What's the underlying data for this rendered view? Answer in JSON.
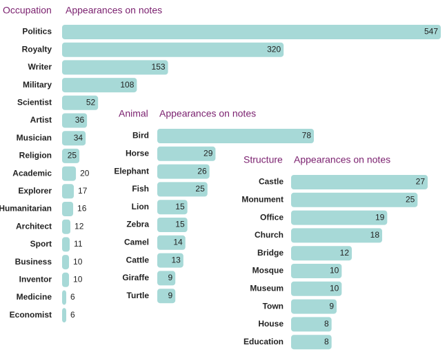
{
  "chart_data": [
    {
      "type": "bar",
      "orientation": "horizontal",
      "category_header": "Occupation",
      "value_header": "Appearances on notes",
      "categories": [
        "Politics",
        "Royalty",
        "Writer",
        "Military",
        "Scientist",
        "Artist",
        "Musician",
        "Religion",
        "Academic",
        "Explorer",
        "Humanitarian",
        "Architect",
        "Sport",
        "Business",
        "Inventor",
        "Medicine",
        "Economist"
      ],
      "values": [
        547,
        320,
        153,
        108,
        52,
        36,
        34,
        25,
        20,
        17,
        16,
        12,
        11,
        10,
        10,
        6,
        6
      ],
      "xlim": [
        0,
        547
      ],
      "grid": false,
      "data_labels": true
    },
    {
      "type": "bar",
      "orientation": "horizontal",
      "category_header": "Animal",
      "value_header": "Appearances on notes",
      "categories": [
        "Bird",
        "Horse",
        "Elephant",
        "Fish",
        "Lion",
        "Zebra",
        "Camel",
        "Cattle",
        "Giraffe",
        "Turtle"
      ],
      "values": [
        78,
        29,
        26,
        25,
        15,
        15,
        14,
        13,
        9,
        9
      ],
      "xlim": [
        0,
        78
      ],
      "grid": false,
      "data_labels": true
    },
    {
      "type": "bar",
      "orientation": "horizontal",
      "category_header": "Structure",
      "value_header": "Appearances on notes",
      "categories": [
        "Castle",
        "Monument",
        "Office",
        "Church",
        "Bridge",
        "Mosque",
        "Museum",
        "Town",
        "House",
        "Education"
      ],
      "values": [
        27,
        25,
        19,
        18,
        12,
        10,
        10,
        9,
        8,
        8
      ],
      "xlim": [
        0,
        27
      ],
      "grid": false,
      "data_labels": true
    }
  ]
}
